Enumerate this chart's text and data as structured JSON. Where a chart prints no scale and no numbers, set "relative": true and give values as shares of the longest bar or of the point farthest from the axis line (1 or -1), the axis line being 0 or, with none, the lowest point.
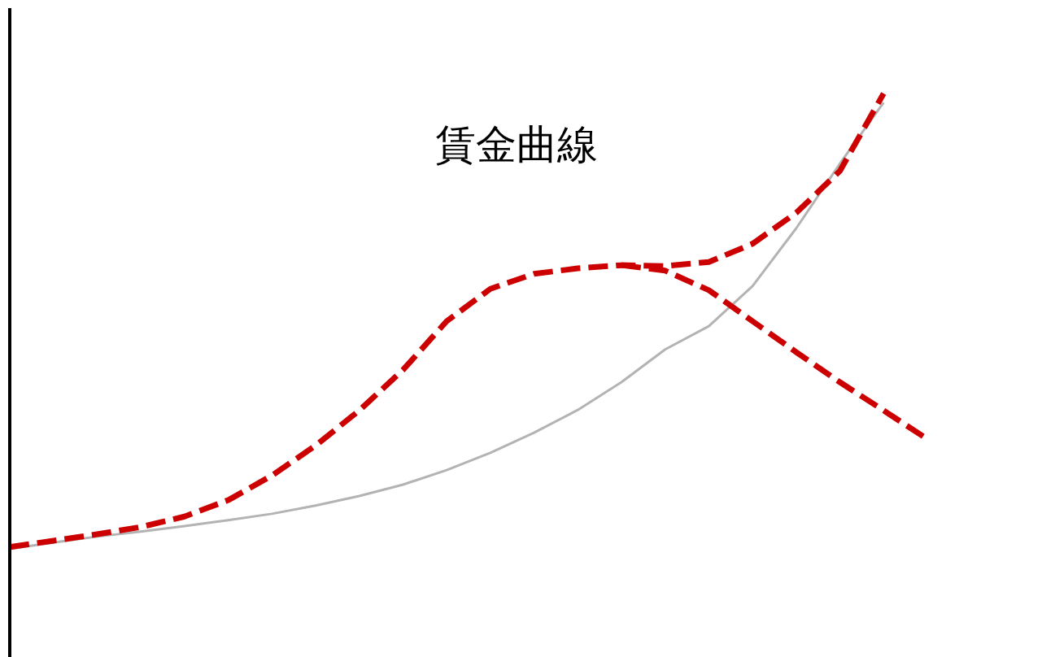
{
  "chart_data": {
    "type": "line",
    "title": "賃金曲線",
    "relative": true,
    "categories": [
      null,
      null,
      null,
      null,
      null,
      null,
      null,
      null,
      null,
      null,
      null,
      null,
      null,
      null,
      null,
      null,
      null,
      null,
      null,
      null,
      null,
      null
    ],
    "series": [
      {
        "color": "#b3b3b3",
        "line_style": "solid",
        "values": [
          0,
          0.014,
          0.027,
          0.038,
          0.05,
          0.063,
          0.077,
          0.095,
          0.116,
          0.141,
          0.173,
          0.211,
          0.255,
          0.305,
          0.366,
          0.438,
          0.489,
          0.577,
          0.704,
          0.846,
          0.98,
          null
        ]
      },
      {
        "color": "#cc0000",
        "line_style": "dashed",
        "values": [
          0.004,
          0.018,
          0.032,
          0.048,
          0.071,
          0.107,
          0.161,
          0.227,
          0.304,
          0.393,
          0.5,
          0.571,
          0.604,
          0.616,
          0.623,
          0.621,
          0.63,
          0.67,
          0.738,
          0.83,
          1,
          null
        ]
      },
      {
        "color": "#cc0000",
        "line_style": "dashed",
        "values": [
          null,
          null,
          null,
          null,
          null,
          null,
          null,
          null,
          null,
          null,
          null,
          null,
          null,
          null,
          0.623,
          0.611,
          0.568,
          0.5,
          0.432,
          0.366,
          0.304,
          0.241
        ]
      }
    ]
  }
}
